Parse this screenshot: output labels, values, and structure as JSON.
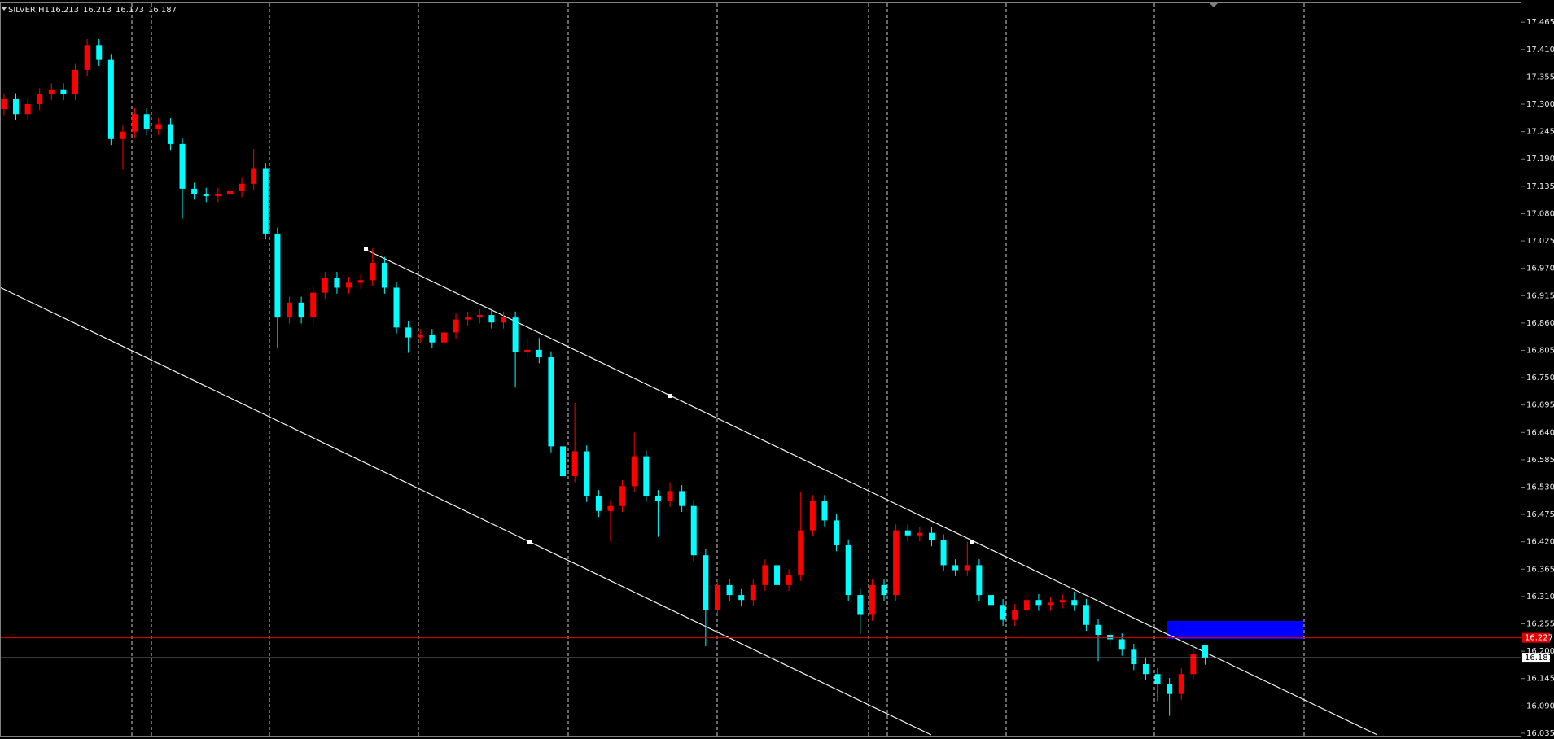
{
  "chart_data": {
    "type": "candlestick",
    "title": "SILVER,H1",
    "header_ohlc": [
      16.213,
      16.213,
      16.173,
      16.187
    ],
    "bull_color": "#ff0000",
    "bear_color": "#00ffff",
    "ylim": [
      16.03,
      17.503
    ],
    "yticks": [
      17.465,
      {
        "value": 17.41,
        "label": "17.410"
      },
      17.355,
      {
        "value": 17.3,
        "label": "17.300"
      },
      17.245,
      {
        "value": 17.19,
        "label": "17.190"
      },
      17.135,
      {
        "value": 17.08,
        "label": "17.080"
      },
      17.025,
      {
        "value": 16.97,
        "label": "16.970"
      },
      16.915,
      {
        "value": 16.86,
        "label": "16.860"
      },
      16.805,
      {
        "value": 16.75,
        "label": "16.750"
      },
      16.695,
      {
        "value": 16.64,
        "label": "16.640"
      },
      16.585,
      {
        "value": 16.53,
        "label": "16.530"
      },
      16.475,
      {
        "value": 16.42,
        "label": "16.420"
      },
      16.365,
      {
        "value": 16.31,
        "label": "16.310"
      },
      16.255,
      {
        "value": 16.2,
        "label": "16.200"
      },
      16.145,
      {
        "value": 16.09,
        "label": "16.090"
      },
      16.035
    ],
    "grid": false,
    "price_lines": [
      {
        "value": 16.227,
        "color": "#e00000",
        "label_bg": "#e00000",
        "label_fg": "#ffffff"
      },
      {
        "value": 16.187,
        "color": "#7f8fb0",
        "label_bg": "#ffffff",
        "label_fg": "#000000"
      }
    ],
    "open": [
      17.29,
      17.31,
      17.28,
      17.3,
      17.32,
      17.33,
      17.32,
      17.369,
      17.419,
      17.389,
      17.23,
      17.245,
      17.28,
      17.25,
      17.26,
      17.22,
      17.13,
      17.12,
      17.115,
      17.12,
      17.125,
      17.14,
      17.17,
      17.04,
      16.871,
      16.901,
      16.871,
      16.921,
      16.951,
      16.931,
      16.941,
      16.946,
      16.981,
      16.931,
      16.851,
      16.831,
      16.836,
      16.821,
      16.841,
      16.867,
      16.871,
      16.876,
      16.861,
      16.871,
      16.801,
      16.806,
      16.791,
      16.612,
      16.552,
      16.602,
      16.512,
      16.482,
      16.492,
      16.532,
      16.592,
      16.512,
      16.502,
      16.522,
      16.492,
      16.393,
      16.283,
      16.333,
      16.313,
      16.303,
      16.333,
      16.373,
      16.333,
      16.353,
      16.443,
      16.502,
      16.463,
      16.413,
      16.313,
      16.273,
      16.333,
      16.313,
      16.443,
      16.433,
      16.438,
      16.423,
      16.373,
      16.363,
      16.373,
      16.313,
      16.293,
      16.263,
      16.283,
      16.303,
      16.293,
      16.298,
      16.303,
      16.293,
      16.253,
      16.233,
      16.224,
      16.203,
      16.174,
      16.154,
      16.134,
      16.114,
      16.154,
      16.213
    ],
    "high": [
      17.322,
      17.322,
      17.312,
      17.332,
      17.342,
      17.342,
      17.381,
      17.431,
      17.431,
      17.401,
      17.257,
      17.292,
      17.292,
      17.272,
      17.272,
      17.232,
      17.142,
      17.132,
      17.132,
      17.137,
      17.152,
      17.21,
      17.182,
      17.052,
      16.913,
      16.913,
      16.933,
      16.963,
      16.963,
      16.953,
      16.958,
      17.01,
      16.993,
      16.943,
      16.863,
      16.848,
      16.848,
      16.853,
      16.879,
      16.883,
      16.888,
      16.888,
      16.883,
      16.883,
      16.83,
      16.83,
      16.803,
      16.624,
      16.7,
      16.614,
      16.524,
      16.504,
      16.544,
      16.64,
      16.604,
      16.524,
      16.54,
      16.534,
      16.504,
      16.405,
      16.345,
      16.345,
      16.325,
      16.345,
      16.385,
      16.385,
      16.365,
      16.52,
      16.514,
      16.514,
      16.475,
      16.425,
      16.325,
      16.345,
      16.345,
      16.455,
      16.455,
      16.45,
      16.45,
      16.435,
      16.385,
      16.42,
      16.385,
      16.325,
      16.305,
      16.295,
      16.315,
      16.315,
      16.31,
      16.315,
      16.32,
      16.305,
      16.265,
      16.245,
      16.236,
      16.215,
      16.186,
      16.166,
      16.146,
      16.166,
      16.215,
      16.213
    ],
    "low": [
      17.278,
      17.268,
      17.268,
      17.288,
      17.308,
      17.308,
      17.308,
      17.357,
      17.377,
      17.218,
      17.168,
      17.233,
      17.238,
      17.238,
      17.208,
      17.07,
      17.108,
      17.103,
      17.103,
      17.108,
      17.113,
      17.128,
      17.028,
      16.81,
      16.859,
      16.859,
      16.859,
      16.909,
      16.919,
      16.919,
      16.929,
      16.934,
      16.919,
      16.839,
      16.8,
      16.819,
      16.809,
      16.809,
      16.829,
      16.855,
      16.859,
      16.849,
      16.849,
      16.73,
      16.789,
      16.779,
      16.6,
      16.54,
      16.54,
      16.5,
      16.47,
      16.42,
      16.48,
      16.52,
      16.5,
      16.43,
      16.49,
      16.48,
      16.381,
      16.21,
      16.271,
      16.301,
      16.291,
      16.291,
      16.321,
      16.321,
      16.321,
      16.341,
      16.431,
      16.451,
      16.401,
      16.301,
      16.235,
      16.261,
      16.301,
      16.301,
      16.421,
      16.421,
      16.411,
      16.361,
      16.351,
      16.351,
      16.301,
      16.281,
      16.251,
      16.251,
      16.271,
      16.281,
      16.281,
      16.286,
      16.281,
      16.241,
      16.18,
      16.212,
      16.191,
      16.162,
      16.142,
      16.1,
      16.07,
      16.102,
      16.142,
      16.173
    ],
    "close": [
      17.31,
      17.28,
      17.3,
      17.32,
      17.33,
      17.32,
      17.369,
      17.419,
      17.389,
      17.23,
      17.245,
      17.28,
      17.25,
      17.26,
      17.22,
      17.13,
      17.12,
      17.115,
      17.12,
      17.125,
      17.14,
      17.17,
      17.04,
      16.871,
      16.901,
      16.871,
      16.921,
      16.951,
      16.931,
      16.941,
      16.946,
      16.981,
      16.931,
      16.851,
      16.831,
      16.836,
      16.821,
      16.841,
      16.867,
      16.871,
      16.876,
      16.861,
      16.871,
      16.801,
      16.806,
      16.791,
      16.612,
      16.552,
      16.602,
      16.512,
      16.482,
      16.492,
      16.532,
      16.592,
      16.512,
      16.502,
      16.522,
      16.492,
      16.393,
      16.283,
      16.333,
      16.313,
      16.303,
      16.333,
      16.373,
      16.333,
      16.353,
      16.443,
      16.502,
      16.463,
      16.413,
      16.313,
      16.273,
      16.333,
      16.313,
      16.443,
      16.433,
      16.438,
      16.423,
      16.373,
      16.363,
      16.373,
      16.313,
      16.293,
      16.263,
      16.283,
      16.303,
      16.293,
      16.298,
      16.303,
      16.293,
      16.253,
      16.233,
      16.224,
      16.203,
      16.174,
      16.154,
      16.134,
      16.114,
      16.154,
      16.194,
      16.187
    ]
  }
}
